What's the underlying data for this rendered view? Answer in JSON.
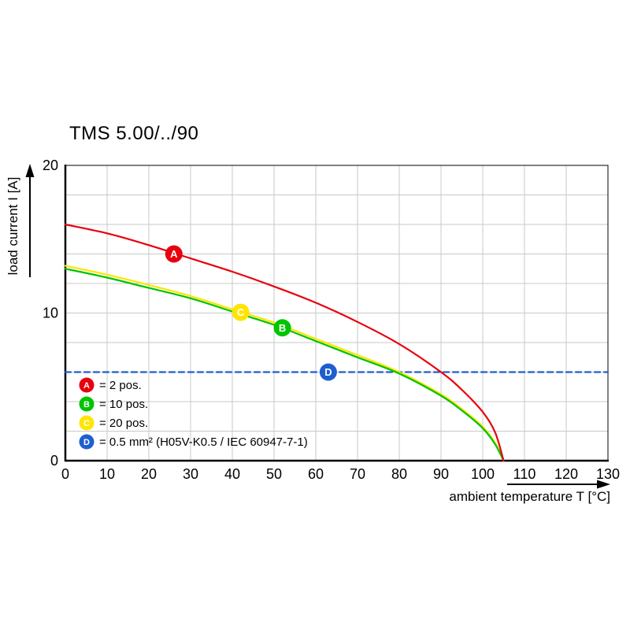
{
  "page": {
    "background": "#ffffff"
  },
  "chart_data": {
    "type": "line",
    "title": "TMS 5.00/../90",
    "xlabel": "ambient temperature T [°C]",
    "ylabel": "load current I [A]",
    "xlim": [
      0,
      130
    ],
    "ylim": [
      0,
      20
    ],
    "x_ticks": [
      0,
      10,
      20,
      30,
      40,
      50,
      60,
      70,
      80,
      90,
      100,
      110,
      120,
      130
    ],
    "y_ticks": [
      0,
      10,
      20
    ],
    "grid": {
      "x_step": 10,
      "y_step": 2,
      "color": "#c8c8c8"
    },
    "axis_color": "#000000",
    "series": [
      {
        "id": "D",
        "legend_label": "= 0.5 mm² (H05V-K0.5 / IEC 60947-7-1)",
        "color": "#1e5fd0",
        "line_style": "dashed",
        "marker": {
          "x": 63,
          "y": 6
        },
        "points": [
          [
            0,
            6
          ],
          [
            130,
            6
          ]
        ]
      },
      {
        "id": "C",
        "legend_label": "= 20 pos.",
        "color": "#ffe500",
        "line_style": "solid",
        "marker": {
          "x": 42,
          "y": 10.05
        },
        "points": [
          [
            0,
            13.2
          ],
          [
            10,
            12.6
          ],
          [
            20,
            11.9
          ],
          [
            30,
            11.15
          ],
          [
            40,
            10.25
          ],
          [
            50,
            9.35
          ],
          [
            60,
            8.25
          ],
          [
            70,
            7.15
          ],
          [
            80,
            6.0
          ],
          [
            90,
            4.5
          ],
          [
            95,
            3.5
          ],
          [
            100,
            2.3
          ],
          [
            103,
            1.2
          ],
          [
            105,
            0
          ]
        ]
      },
      {
        "id": "B",
        "legend_label": "= 10 pos.",
        "color": "#00c400",
        "line_style": "solid",
        "marker": {
          "x": 52,
          "y": 9.0
        },
        "points": [
          [
            0,
            13.0
          ],
          [
            10,
            12.4
          ],
          [
            20,
            11.7
          ],
          [
            30,
            11.0
          ],
          [
            40,
            10.1
          ],
          [
            50,
            9.2
          ],
          [
            60,
            8.1
          ],
          [
            70,
            7.0
          ],
          [
            80,
            5.9
          ],
          [
            90,
            4.4
          ],
          [
            95,
            3.4
          ],
          [
            100,
            2.2
          ],
          [
            103,
            1.1
          ],
          [
            105,
            0
          ]
        ]
      },
      {
        "id": "A",
        "legend_label": "= 2 pos.",
        "color": "#e8000d",
        "line_style": "solid",
        "marker": {
          "x": 26,
          "y": 14.0
        },
        "points": [
          [
            0,
            16.0
          ],
          [
            10,
            15.4
          ],
          [
            20,
            14.6
          ],
          [
            30,
            13.7
          ],
          [
            40,
            12.8
          ],
          [
            50,
            11.8
          ],
          [
            60,
            10.7
          ],
          [
            70,
            9.4
          ],
          [
            80,
            7.9
          ],
          [
            90,
            6.0
          ],
          [
            95,
            4.8
          ],
          [
            100,
            3.3
          ],
          [
            103,
            1.9
          ],
          [
            105,
            0
          ]
        ]
      }
    ],
    "legend_order": [
      "A",
      "B",
      "C",
      "D"
    ],
    "legend_position": "bottom-left-inside"
  }
}
